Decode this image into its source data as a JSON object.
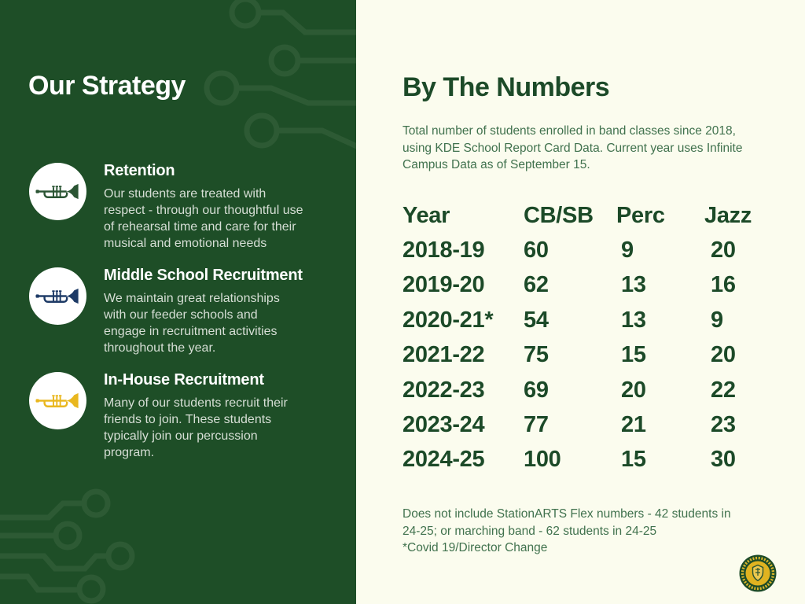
{
  "strategy": {
    "title": "Our Strategy",
    "items": [
      {
        "heading": "Retention",
        "description": "Our students are treated with\nrespect - through our thoughtful use\nof rehearsal time and care for their\nmusical and  emotional needs",
        "icon": "trumpet-icon",
        "icon_color": "#2a5433"
      },
      {
        "heading": "Middle School Recruitment",
        "description": "We maintain great relationships\nwith our feeder schools and\nengage in recruitment activities\nthroughout the year.",
        "icon": "trumpet-icon",
        "icon_color": "#1d3a66"
      },
      {
        "heading": "In-House Recruitment",
        "description": "Many of our students recruit their\nfriends to join. These students\ntypically join our percussion\nprogram.",
        "icon": "trumpet-icon",
        "icon_color": "#e9b71f"
      }
    ]
  },
  "numbers": {
    "title": "By The Numbers",
    "subtitle": "Total number of students enrolled in band classes since 2018,\nusing KDE School Report Card Data. Current year uses Infinite\nCampus Data as of September 15.",
    "footnote": "Does not include StationARTS Flex numbers - 42 students in\n24-25; or marching band - 62 students in 24-25\n*Covid 19/Director Change"
  },
  "table": {
    "columns": [
      "Year",
      "CB/SB",
      "Perc",
      "Jazz"
    ],
    "rows": [
      [
        "2018-19",
        "60",
        "9",
        "20"
      ],
      [
        "2019-20",
        "62",
        "13",
        "16"
      ],
      [
        "2020-21*",
        "54",
        "13",
        "9"
      ],
      [
        "2021-22",
        "75",
        "15",
        "20"
      ],
      [
        "2022-23",
        "69",
        "20",
        "22"
      ],
      [
        "2023-24",
        "77",
        "21",
        "23"
      ],
      [
        "2024-25",
        "100",
        "15",
        "30"
      ]
    ]
  },
  "colors": {
    "left_panel_bg": "#1e4e27",
    "circuit_pattern": "#2d5a34",
    "right_panel_bg": "#fbfcee",
    "dark_green_text": "#1c4a28",
    "muted_green_text": "#41724e",
    "light_text_on_green": "#d6ded5",
    "trumpet_green": "#2a5433",
    "trumpet_navy": "#1d3a66",
    "trumpet_gold": "#e9b71f",
    "logo_ring_green": "#1d4b28",
    "logo_gold": "#e0b320"
  }
}
